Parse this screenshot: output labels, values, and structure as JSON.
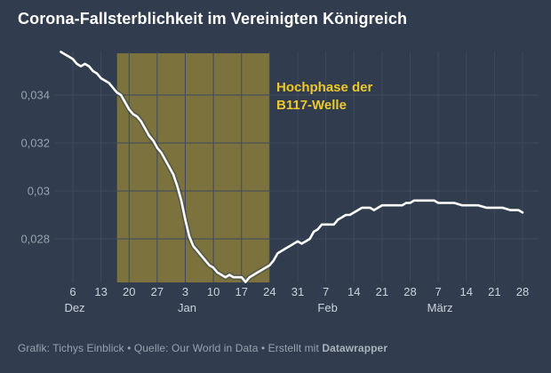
{
  "header": {
    "title": "Corona-Fallsterblichkeit im Vereinigten Königreich"
  },
  "footer": {
    "credits": "Grafik: Tichys Einblick • Quelle: Our World in Data • Erstellt mit ",
    "brand": "Datawrapper"
  },
  "colors": {
    "background": "#313d4e",
    "grid": "#3e4a5c",
    "line": "#ffffff",
    "highlight_band": "#7b723e",
    "annotation_text": "#eec72d",
    "y_tick_text": "#97a2ae",
    "x_tick_text": "#ccd3da",
    "title_text": "#ffffff",
    "footer_text": "#98a3af"
  },
  "chart_data": {
    "type": "line",
    "title": "Corona-Fallsterblichkeit im Vereinigten Königreich",
    "xlabel": "",
    "ylabel": "",
    "ylim": [
      0.026,
      0.036
    ],
    "grid": true,
    "legend": "none",
    "x_axis_note": "day offsets are days relative to Dez 6",
    "y_ticks": [
      {
        "value": 0.034,
        "label": "0,034"
      },
      {
        "value": 0.032,
        "label": "0,032"
      },
      {
        "value": 0.03,
        "label": "0,03"
      },
      {
        "value": 0.028,
        "label": "0,028"
      }
    ],
    "x_ticks": [
      {
        "day": 0,
        "label": "6"
      },
      {
        "day": 7,
        "label": "13"
      },
      {
        "day": 14,
        "label": "20"
      },
      {
        "day": 21,
        "label": "27"
      },
      {
        "day": 28,
        "label": "3"
      },
      {
        "day": 35,
        "label": "10"
      },
      {
        "day": 42,
        "label": "17"
      },
      {
        "day": 49,
        "label": "24"
      },
      {
        "day": 56,
        "label": "31"
      },
      {
        "day": 63,
        "label": "7"
      },
      {
        "day": 70,
        "label": "14"
      },
      {
        "day": 77,
        "label": "21"
      },
      {
        "day": 84,
        "label": "28"
      },
      {
        "day": 91,
        "label": "7"
      },
      {
        "day": 98,
        "label": "14"
      },
      {
        "day": 105,
        "label": "21"
      },
      {
        "day": 112,
        "label": "28"
      }
    ],
    "x_months": [
      {
        "day": 0,
        "label": "Dez"
      },
      {
        "day": 28,
        "label": "Jan"
      },
      {
        "day": 63,
        "label": "Feb"
      },
      {
        "day": 91,
        "label": "März"
      }
    ],
    "highlight": {
      "from_day": 11,
      "to_day": 49,
      "from_date": "17. Dez",
      "to_date": "24. Jan",
      "label": [
        "Hochphase der",
        "B117-Welle"
      ]
    },
    "series": [
      {
        "points": [
          [
            -3,
            0.0358
          ],
          [
            -2,
            0.0357
          ],
          [
            -1,
            0.0356
          ],
          [
            0,
            0.0355
          ],
          [
            1,
            0.0353
          ],
          [
            2,
            0.0352
          ],
          [
            3,
            0.0353
          ],
          [
            4,
            0.0352
          ],
          [
            5,
            0.035
          ],
          [
            6,
            0.0349
          ],
          [
            7,
            0.0347
          ],
          [
            8,
            0.0346
          ],
          [
            9,
            0.0345
          ],
          [
            10,
            0.0343
          ],
          [
            11,
            0.0341
          ],
          [
            12,
            0.034
          ],
          [
            13,
            0.0337
          ],
          [
            14,
            0.0334
          ],
          [
            15,
            0.0332
          ],
          [
            16,
            0.0331
          ],
          [
            17,
            0.0329
          ],
          [
            18,
            0.0326
          ],
          [
            19,
            0.0323
          ],
          [
            20,
            0.0321
          ],
          [
            21,
            0.0318
          ],
          [
            22,
            0.0316
          ],
          [
            23,
            0.0313
          ],
          [
            24,
            0.031
          ],
          [
            25,
            0.0307
          ],
          [
            26,
            0.0302
          ],
          [
            27,
            0.0296
          ],
          [
            28,
            0.0288
          ],
          [
            29,
            0.0281
          ],
          [
            30,
            0.0277
          ],
          [
            31,
            0.0275
          ],
          [
            32,
            0.0273
          ],
          [
            33,
            0.0271
          ],
          [
            34,
            0.0269
          ],
          [
            35,
            0.0268
          ],
          [
            36,
            0.0266
          ],
          [
            37,
            0.0265
          ],
          [
            38,
            0.0264
          ],
          [
            39,
            0.0265
          ],
          [
            40,
            0.0264
          ],
          [
            41,
            0.0264
          ],
          [
            42,
            0.0264
          ],
          [
            43,
            0.0262
          ],
          [
            44,
            0.0264
          ],
          [
            45,
            0.0265
          ],
          [
            46,
            0.0266
          ],
          [
            47,
            0.0267
          ],
          [
            48,
            0.0268
          ],
          [
            49,
            0.0269
          ],
          [
            50,
            0.0271
          ],
          [
            51,
            0.0274
          ],
          [
            52,
            0.0275
          ],
          [
            53,
            0.0276
          ],
          [
            54,
            0.0277
          ],
          [
            55,
            0.0278
          ],
          [
            56,
            0.0279
          ],
          [
            57,
            0.0278
          ],
          [
            58,
            0.0279
          ],
          [
            59,
            0.028
          ],
          [
            60,
            0.0283
          ],
          [
            61,
            0.0284
          ],
          [
            62,
            0.0286
          ],
          [
            63,
            0.0286
          ],
          [
            64,
            0.0286
          ],
          [
            65,
            0.0286
          ],
          [
            66,
            0.0288
          ],
          [
            67,
            0.0289
          ],
          [
            68,
            0.029
          ],
          [
            69,
            0.029
          ],
          [
            70,
            0.0291
          ],
          [
            71,
            0.0292
          ],
          [
            72,
            0.0293
          ],
          [
            73,
            0.0293
          ],
          [
            74,
            0.0293
          ],
          [
            75,
            0.0292
          ],
          [
            76,
            0.0293
          ],
          [
            77,
            0.0294
          ],
          [
            78,
            0.0294
          ],
          [
            79,
            0.0294
          ],
          [
            80,
            0.0294
          ],
          [
            81,
            0.0294
          ],
          [
            82,
            0.0294
          ],
          [
            83,
            0.0295
          ],
          [
            84,
            0.0295
          ],
          [
            85,
            0.0296
          ],
          [
            86,
            0.0296
          ],
          [
            87,
            0.0296
          ],
          [
            88,
            0.0296
          ],
          [
            89,
            0.0296
          ],
          [
            90,
            0.0296
          ],
          [
            91,
            0.0295
          ],
          [
            93,
            0.0295
          ],
          [
            95,
            0.0295
          ],
          [
            97,
            0.0294
          ],
          [
            99,
            0.0294
          ],
          [
            101,
            0.0294
          ],
          [
            103,
            0.0293
          ],
          [
            105,
            0.0293
          ],
          [
            107,
            0.0293
          ],
          [
            109,
            0.0292
          ],
          [
            111,
            0.0292
          ],
          [
            112,
            0.0291
          ]
        ]
      }
    ]
  }
}
